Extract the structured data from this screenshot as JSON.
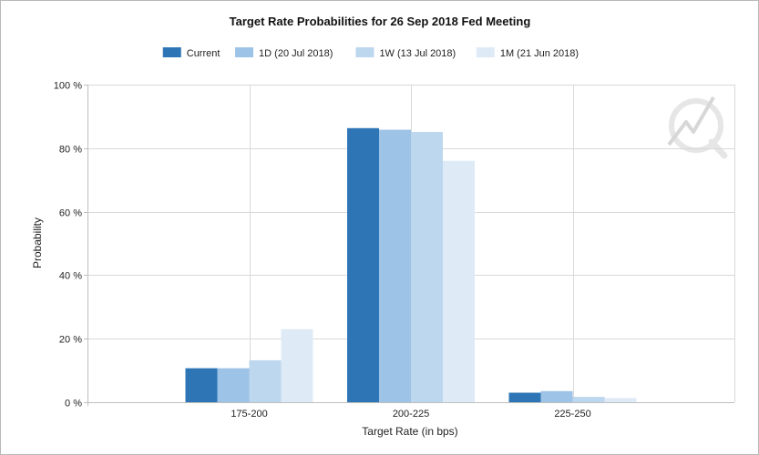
{
  "chart_data": {
    "type": "bar",
    "title": "Target Rate Probabilities for 26 Sep 2018 Fed Meeting",
    "xlabel": "Target Rate (in bps)",
    "ylabel": "Probability",
    "categories": [
      "175-200",
      "200-225",
      "225-250"
    ],
    "series": [
      {
        "name": "Current",
        "values": [
          10.7,
          86.3,
          3.0
        ],
        "color": "#2e75b6"
      },
      {
        "name": "1D (20 Jul 2018)",
        "values": [
          10.7,
          85.8,
          3.5
        ],
        "color": "#9dc3e6"
      },
      {
        "name": "1W (13 Jul 2018)",
        "values": [
          13.2,
          85.1,
          1.7
        ],
        "color": "#bdd7ee"
      },
      {
        "name": "1M (21 Jun 2018)",
        "values": [
          23.0,
          76.0,
          1.3
        ],
        "color": "#deebf7"
      }
    ],
    "ylim": [
      0,
      100
    ],
    "yticks": [
      0,
      20,
      40,
      60,
      80,
      100
    ],
    "ytick_labels": [
      "0 %",
      "20 %",
      "40 %",
      "60 %",
      "80 %",
      "100 %"
    ],
    "grid": true,
    "legend_position": "top-center",
    "watermark": "CME Group FedWatch logo"
  }
}
